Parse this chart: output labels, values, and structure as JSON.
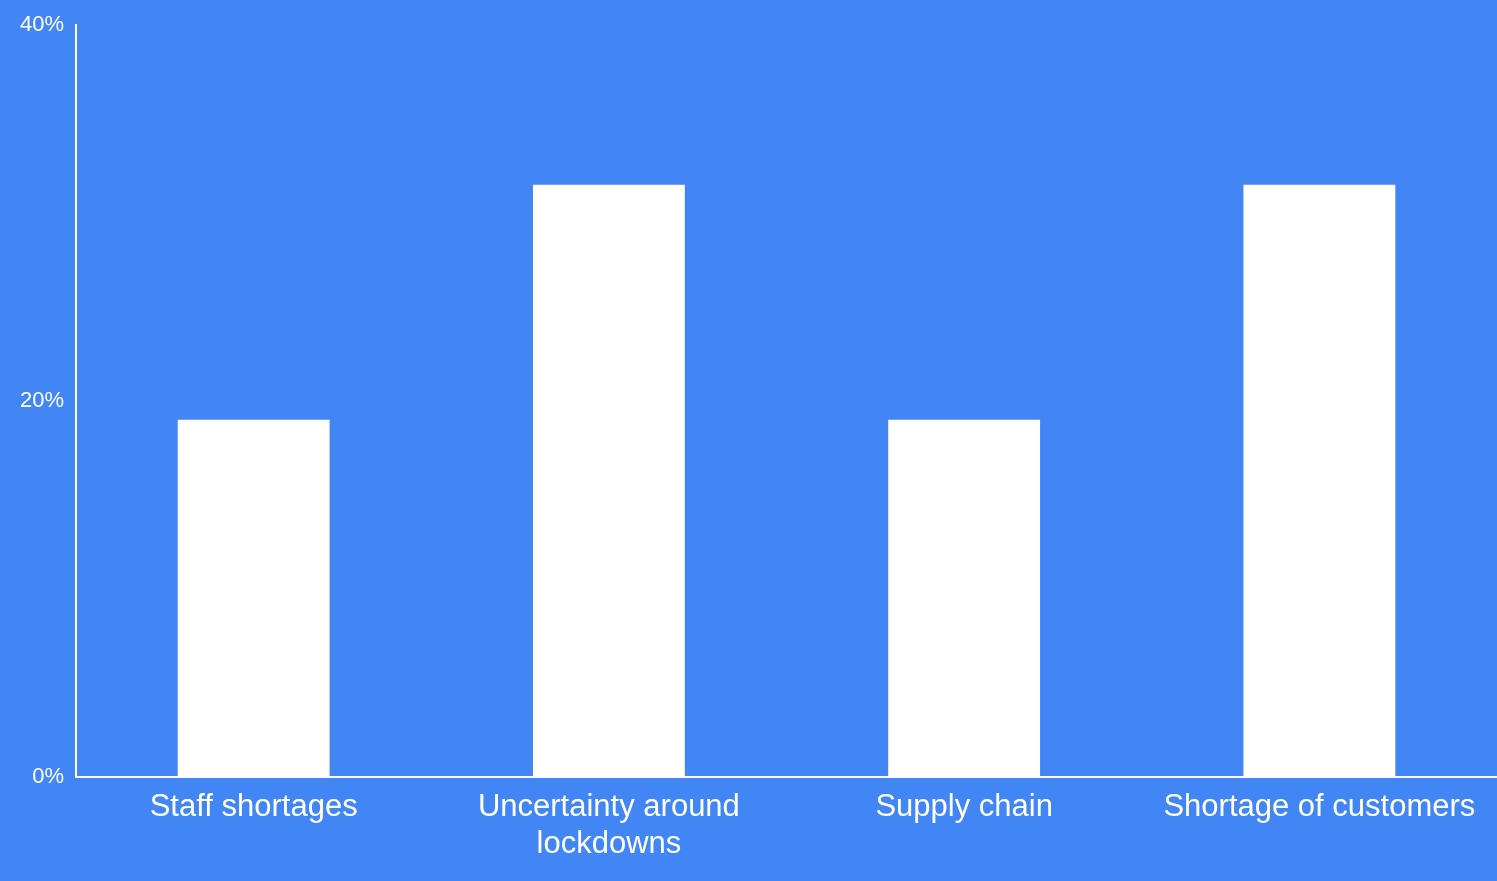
{
  "chart_data": {
    "type": "bar",
    "categories": [
      "Staff shortages",
      "Uncertainty around lockdowns",
      "Supply chain",
      "Shortage of customers"
    ],
    "values": [
      19,
      31.5,
      19,
      31.5
    ],
    "color": "#ffffff",
    "ylim": [
      0,
      40
    ],
    "yticks": [
      {
        "value": 0,
        "label": "0%"
      },
      {
        "value": 20,
        "label": "20%"
      },
      {
        "value": 40,
        "label": "40%"
      }
    ],
    "grid": false,
    "legend": false
  }
}
